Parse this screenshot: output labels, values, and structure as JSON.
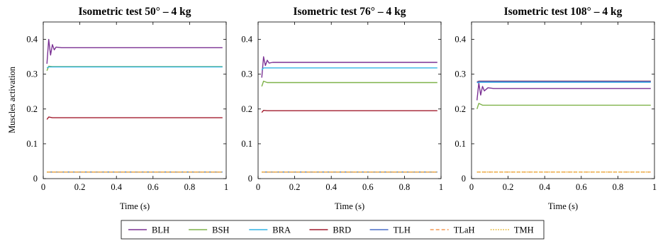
{
  "ylabel_shared": "Muscles activation",
  "legend": [
    {
      "name": "BLH",
      "color": "#7b3294",
      "dash": "solid"
    },
    {
      "name": "BSH",
      "color": "#7fb24a",
      "dash": "solid"
    },
    {
      "name": "BRA",
      "color": "#32b4e6",
      "dash": "solid"
    },
    {
      "name": "BRD",
      "color": "#a21c2e",
      "dash": "solid"
    },
    {
      "name": "TLH",
      "color": "#4a6fc7",
      "dash": "solid"
    },
    {
      "name": "TLaH",
      "color": "#f39a55",
      "dash": "dashed"
    },
    {
      "name": "TMH",
      "color": "#e2b01e",
      "dash": "dotted"
    }
  ],
  "chart_data": [
    {
      "type": "line",
      "title": "Isometric test 50° – 4 kg",
      "xlabel": "Time (s)",
      "ylabel": "Muscles activation",
      "xlim": [
        0,
        1
      ],
      "ylim": [
        0,
        0.45
      ],
      "xticks": [
        "0",
        "0.2",
        "0.4",
        "0.6",
        "0.8",
        "1"
      ],
      "yticks": [
        "0",
        "0.1",
        "0.2",
        "0.3",
        "0.4"
      ],
      "grid": false,
      "series": [
        {
          "name": "BLH",
          "x": [
            0.02,
            0.03,
            0.04,
            0.05,
            0.06,
            0.07,
            0.1,
            0.98
          ],
          "values": [
            0.33,
            0.4,
            0.355,
            0.385,
            0.37,
            0.378,
            0.376,
            0.376
          ]
        },
        {
          "name": "BSH",
          "x": [
            0.02,
            0.03,
            0.05,
            0.98
          ],
          "values": [
            0.31,
            0.323,
            0.322,
            0.322
          ]
        },
        {
          "name": "BRA",
          "x": [
            0.02,
            0.03,
            0.98
          ],
          "values": [
            0.318,
            0.321,
            0.321
          ]
        },
        {
          "name": "BRD",
          "x": [
            0.02,
            0.03,
            0.05,
            0.98
          ],
          "values": [
            0.17,
            0.177,
            0.175,
            0.175
          ]
        },
        {
          "name": "TLH",
          "x": [
            0.02,
            0.98
          ],
          "values": [
            0.019,
            0.019
          ]
        },
        {
          "name": "TLaH",
          "x": [
            0.02,
            0.98
          ],
          "values": [
            0.019,
            0.019
          ]
        },
        {
          "name": "TMH",
          "x": [
            0.02,
            0.98
          ],
          "values": [
            0.019,
            0.019
          ]
        }
      ]
    },
    {
      "type": "line",
      "title": "Isometric test 76° – 4 kg",
      "xlabel": "Time (s)",
      "ylabel": "",
      "xlim": [
        0,
        1
      ],
      "ylim": [
        0,
        0.45
      ],
      "xticks": [
        "0",
        "0.2",
        "0.4",
        "0.6",
        "0.8",
        "1"
      ],
      "yticks": [
        "0",
        "0.1",
        "0.2",
        "0.3",
        "0.4"
      ],
      "grid": false,
      "series": [
        {
          "name": "BLH",
          "x": [
            0.02,
            0.03,
            0.04,
            0.05,
            0.06,
            0.08,
            0.98
          ],
          "values": [
            0.29,
            0.35,
            0.325,
            0.34,
            0.332,
            0.334,
            0.334
          ]
        },
        {
          "name": "BSH",
          "x": [
            0.02,
            0.03,
            0.05,
            0.98
          ],
          "values": [
            0.265,
            0.28,
            0.276,
            0.276
          ]
        },
        {
          "name": "BRA",
          "x": [
            0.02,
            0.03,
            0.98
          ],
          "values": [
            0.312,
            0.318,
            0.318
          ]
        },
        {
          "name": "BRD",
          "x": [
            0.02,
            0.03,
            0.05,
            0.98
          ],
          "values": [
            0.19,
            0.196,
            0.195,
            0.195
          ]
        },
        {
          "name": "TLH",
          "x": [
            0.02,
            0.98
          ],
          "values": [
            0.019,
            0.019
          ]
        },
        {
          "name": "TLaH",
          "x": [
            0.02,
            0.98
          ],
          "values": [
            0.019,
            0.019
          ]
        },
        {
          "name": "TMH",
          "x": [
            0.02,
            0.98
          ],
          "values": [
            0.019,
            0.019
          ]
        }
      ]
    },
    {
      "type": "line",
      "title": "Isometric test 108° – 4 kg",
      "xlabel": "Time (s)",
      "ylabel": "",
      "xlim": [
        0,
        1
      ],
      "ylim": [
        0,
        0.45
      ],
      "xticks": [
        "0",
        "0.2",
        "0.4",
        "0.6",
        "0.8",
        "1"
      ],
      "yticks": [
        "0",
        "0.1",
        "0.2",
        "0.3",
        "0.4"
      ],
      "grid": false,
      "series": [
        {
          "name": "BLH",
          "x": [
            0.03,
            0.04,
            0.05,
            0.06,
            0.07,
            0.09,
            0.12,
            0.98
          ],
          "values": [
            0.225,
            0.275,
            0.24,
            0.265,
            0.252,
            0.261,
            0.259,
            0.259
          ]
        },
        {
          "name": "BSH",
          "x": [
            0.03,
            0.04,
            0.06,
            0.98
          ],
          "values": [
            0.2,
            0.216,
            0.211,
            0.211
          ]
        },
        {
          "name": "BRA",
          "x": [
            0.03,
            0.04,
            0.98
          ],
          "values": [
            0.275,
            0.277,
            0.277
          ]
        },
        {
          "name": "BRD",
          "x": [
            0.03,
            0.04,
            0.98
          ],
          "values": [
            0.278,
            0.28,
            0.28
          ]
        },
        {
          "name": "TLH",
          "x": [
            0.03,
            0.04,
            0.98
          ],
          "values": [
            0.277,
            0.279,
            0.279
          ]
        },
        {
          "name": "TLaH",
          "x": [
            0.03,
            0.98
          ],
          "values": [
            0.019,
            0.019
          ]
        },
        {
          "name": "TMH",
          "x": [
            0.03,
            0.98
          ],
          "values": [
            0.019,
            0.019
          ]
        }
      ]
    }
  ]
}
